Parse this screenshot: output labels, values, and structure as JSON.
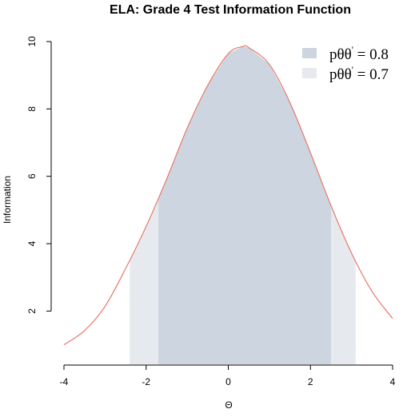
{
  "chart_data": {
    "type": "area",
    "title": "ELA: Grade 4 Test Information Function",
    "xlabel": "Θ",
    "ylabel": "Information",
    "xlim": [
      -4,
      4
    ],
    "ylim": [
      0.8,
      10
    ],
    "x_ticks": [
      -4,
      -2,
      0,
      2,
      4
    ],
    "y_ticks": [
      2,
      4,
      6,
      8,
      10
    ],
    "curve": {
      "x": [
        -4.0,
        -3.5,
        -3.0,
        -2.5,
        -2.0,
        -1.5,
        -1.0,
        -0.5,
        0.0,
        0.35,
        0.5,
        1.0,
        1.5,
        2.0,
        2.5,
        3.0,
        3.5,
        4.0
      ],
      "y": [
        1.0,
        1.42,
        2.14,
        3.26,
        4.51,
        5.92,
        7.43,
        8.7,
        9.64,
        9.85,
        9.82,
        9.32,
        8.19,
        6.7,
        5.13,
        3.72,
        2.58,
        1.78
      ],
      "color": "#e8786a"
    },
    "bands": [
      {
        "label": "pθθ' = 0.8",
        "from": -1.7,
        "to": 2.5,
        "color": "#cdd5e0"
      },
      {
        "label": "pθθ' = 0.7",
        "from": -2.4,
        "to": 3.1,
        "color": "#e6eaef"
      }
    ],
    "legend": {
      "position": "top-right",
      "entries": [
        {
          "prefix": "pθθ",
          "mark": "'",
          "value": " = 0.8",
          "color": "#cdd5e0"
        },
        {
          "prefix": "pθθ",
          "mark": "'",
          "value": " = 0.7",
          "color": "#e6eaef"
        }
      ]
    }
  }
}
